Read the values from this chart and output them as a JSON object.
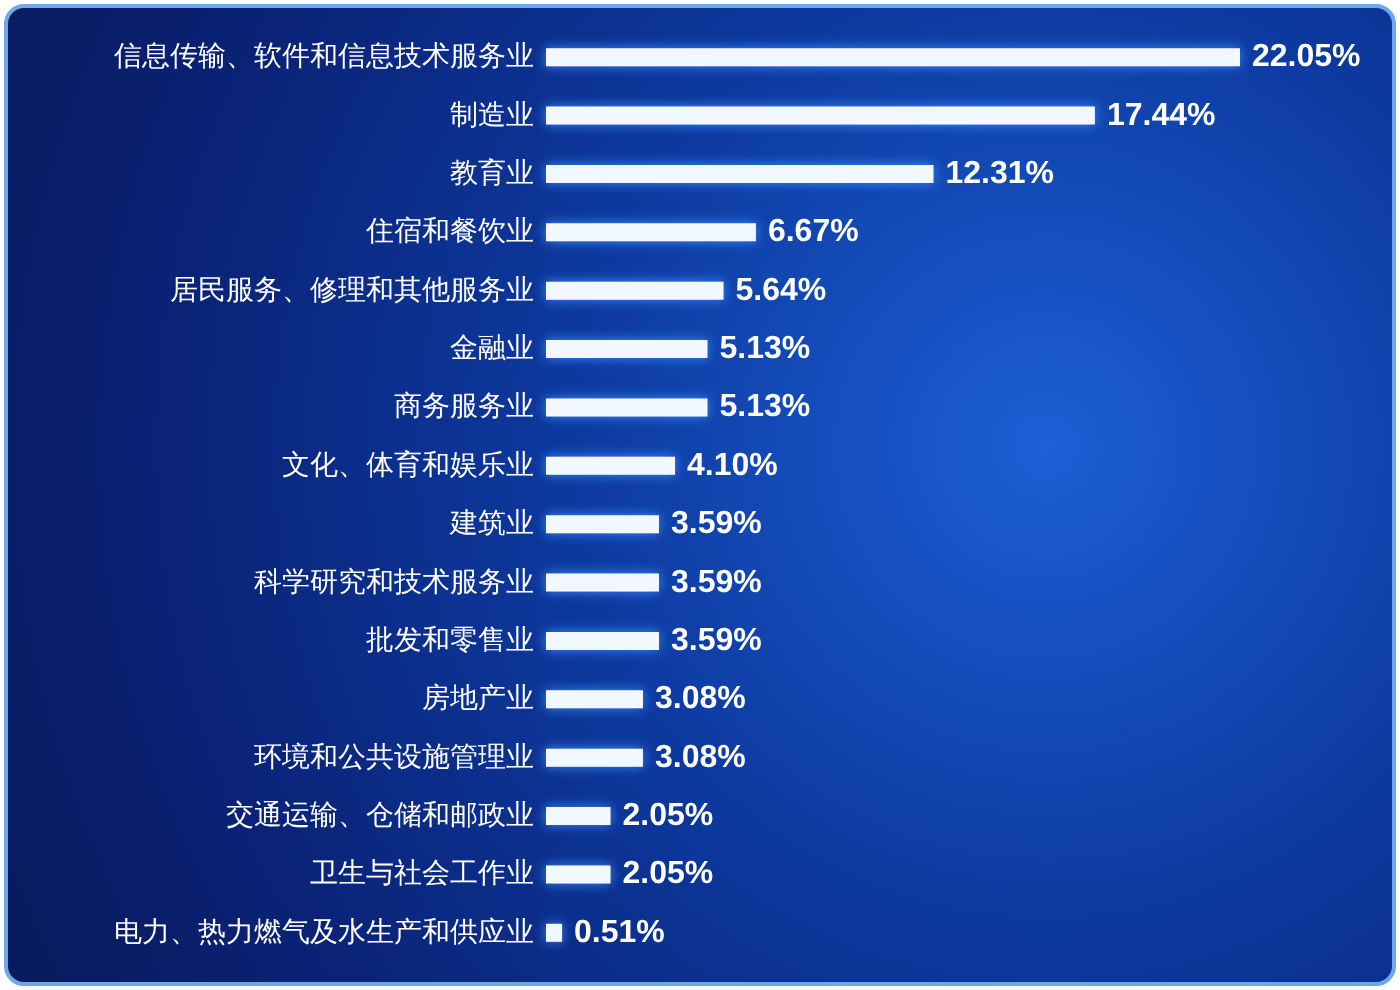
{
  "chart_data": {
    "type": "bar",
    "orientation": "horizontal",
    "categories": [
      "信息传输、软件和信息技术服务业",
      "制造业",
      "教育业",
      "住宿和餐饮业",
      "居民服务、修理和其他服务业",
      "金融业",
      "商务服务业",
      "文化、体育和娱乐业",
      "建筑业",
      "科学研究和技术服务业",
      "批发和零售业",
      "房地产业",
      "环境和公共设施管理业",
      "交通运输、仓储和邮政业",
      "卫生与社会工作业",
      "电力、热力燃气及水生产和供应业"
    ],
    "values": [
      22.05,
      17.44,
      12.31,
      6.67,
      5.64,
      5.13,
      5.13,
      4.1,
      3.59,
      3.59,
      3.59,
      3.08,
      3.08,
      2.05,
      2.05,
      0.51
    ],
    "value_labels": [
      "22.05%",
      "17.44%",
      "12.31%",
      "6.67%",
      "5.64%",
      "5.13%",
      "5.13%",
      "4.10%",
      "3.59%",
      "3.59%",
      "3.59%",
      "3.08%",
      "3.08%",
      "2.05%",
      "2.05%",
      "0.51%"
    ],
    "color": "#f2f8ff"
  }
}
